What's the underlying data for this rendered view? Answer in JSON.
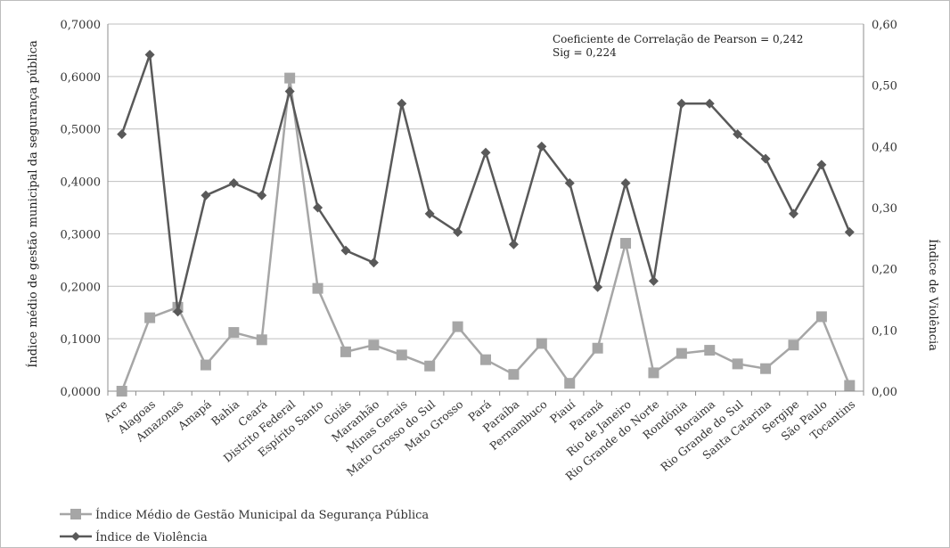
{
  "chart_data": {
    "type": "line",
    "categories": [
      "Acre",
      "Alagoas",
      "Amazonas",
      "Amapá",
      "Bahia",
      "Ceará",
      "Distrito Federal",
      "Espírito Santo",
      "Goiás",
      "Maranhão",
      "Minas Gerais",
      "Mato Grosso do Sul",
      "Mato Grosso",
      "Pará",
      "Paraíba",
      "Pernambuco",
      "Piauí",
      "Paraná",
      "Rio de Janeiro",
      "Rio Grande do Norte",
      "Rondônia",
      "Roraima",
      "Rio Grande do Sul",
      "Santa Catarina",
      "Sergipe",
      "São Paulo",
      "Tocantins"
    ],
    "series": [
      {
        "name": "Índice Médio de Gestão Municipal da Segurança Pública",
        "axis": "left",
        "color": "#a6a6a6",
        "marker": "square",
        "values": [
          0.0,
          0.14,
          0.16,
          0.05,
          0.112,
          0.098,
          0.597,
          0.196,
          0.075,
          0.088,
          0.069,
          0.048,
          0.123,
          0.06,
          0.032,
          0.091,
          0.015,
          0.082,
          0.282,
          0.035,
          0.072,
          0.078,
          0.052,
          0.043,
          0.088,
          0.142,
          0.011
        ]
      },
      {
        "name": "Índice de Violência",
        "axis": "right",
        "color": "#595959",
        "marker": "diamond",
        "values": [
          0.42,
          0.55,
          0.13,
          0.32,
          0.34,
          0.32,
          0.49,
          0.3,
          0.23,
          0.21,
          0.47,
          0.29,
          0.26,
          0.39,
          0.24,
          0.4,
          0.34,
          0.17,
          0.34,
          0.18,
          0.47,
          0.47,
          0.42,
          0.38,
          0.29,
          0.37,
          0.26
        ]
      }
    ],
    "y_left": {
      "label": "Índice médio de gestão municipal da segurança pública",
      "ylim": [
        0,
        0.7
      ],
      "ticks": [
        "0,0000",
        "0,1000",
        "0,2000",
        "0,3000",
        "0,4000",
        "0,5000",
        "0,6000",
        "0,7000"
      ]
    },
    "y_right": {
      "label": "Índice de Violência",
      "ylim": [
        0,
        0.6
      ],
      "ticks": [
        "0,00",
        "0,10",
        "0,20",
        "0,30",
        "0,40",
        "0,50",
        "0,60"
      ]
    },
    "annotation": {
      "line1": "Coeficiente de Correlação de Pearson = 0,242",
      "line2": "Sig = 0,224"
    },
    "grid": true,
    "legend_position": "bottom-left"
  }
}
